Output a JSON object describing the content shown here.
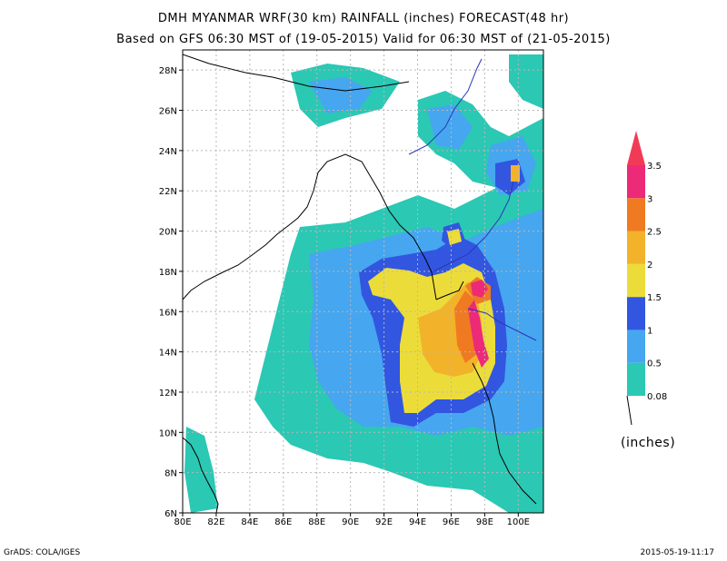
{
  "title": "DMH MYANMAR WRF(30 km) RAINFALL (inches) FORECAST(48 hr)",
  "subtitle": "Based on GFS 06:30 MST of (19-05-2015) Valid for 06:30 MST of (21-05-2015)",
  "footer_left": "GrADS: COLA/IGES",
  "footer_right": "2015-05-19-11:17",
  "map": {
    "lon_range": [
      80,
      101.5
    ],
    "lat_range": [
      6,
      29
    ],
    "lon_ticks": [
      "80E",
      "82E",
      "84E",
      "86E",
      "88E",
      "90E",
      "92E",
      "94E",
      "96E",
      "98E",
      "100E"
    ],
    "lat_ticks": [
      "6N",
      "8N",
      "10N",
      "12N",
      "14N",
      "16N",
      "18N",
      "20N",
      "22N",
      "24N",
      "26N",
      "28N"
    ],
    "gridlines": "dotted"
  },
  "legend": {
    "units_label": "(inches)",
    "levels": [
      "0.08",
      "0.5",
      "1",
      "1.5",
      "2",
      "2.5",
      "3",
      "3.5"
    ],
    "colors": [
      "#2bc8b4",
      "#46a6f0",
      "#3256e0",
      "#ecdc3a",
      "#f2b32a",
      "#ef7a22",
      "#ec2a78",
      "#f23a56"
    ]
  }
}
